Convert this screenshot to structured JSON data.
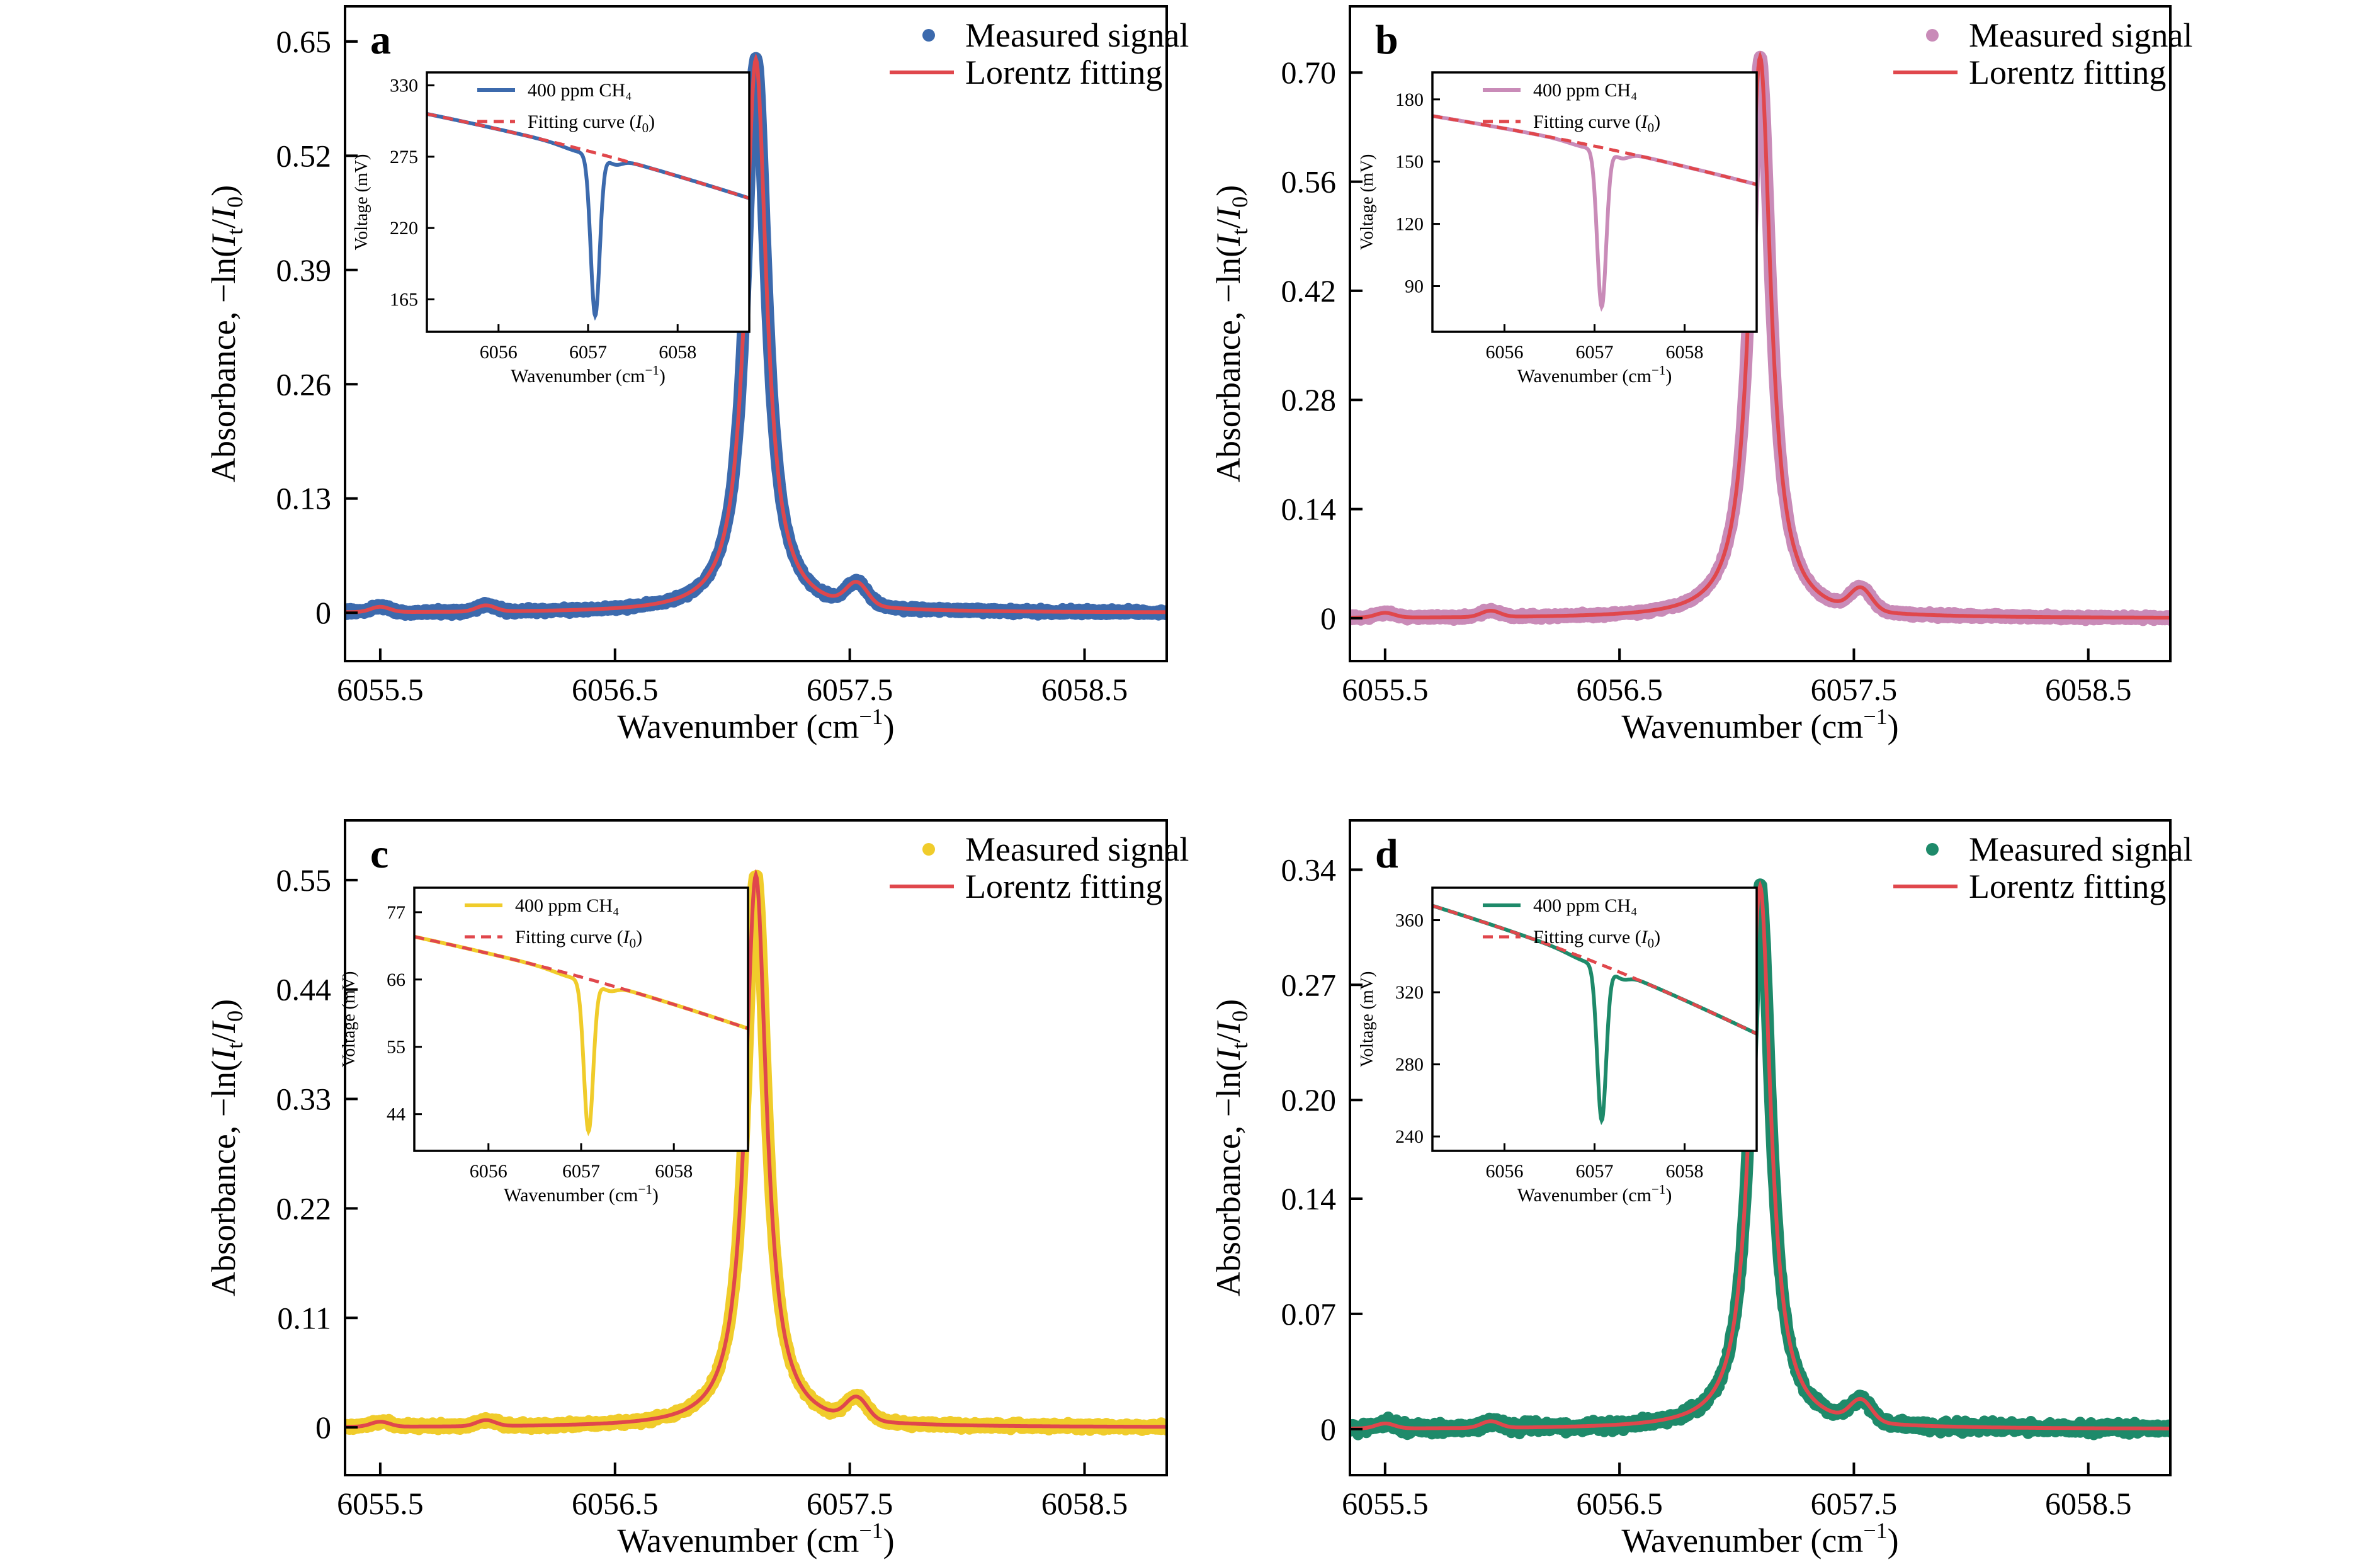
{
  "chart_data": [
    {
      "type": "line",
      "panel_label": "a",
      "xlabel": "Wavenumber (cm⁻¹)",
      "ylabel": "Absorbance, −ln(It/I0)",
      "xlim": [
        6055.35,
        6058.85
      ],
      "ylim": [
        -0.055,
        0.69
      ],
      "xticks": [
        6055.5,
        6056.5,
        6057.5,
        6058.5
      ],
      "xtick_labels": [
        "6055.5",
        "6056.5",
        "6057.5",
        "6058.5"
      ],
      "yticks": [
        0,
        0.13,
        0.26,
        0.39,
        0.52,
        0.65
      ],
      "ytick_labels": [
        "0",
        "0.13",
        "0.26",
        "0.39",
        "0.52",
        "0.65"
      ],
      "peak": {
        "x": 6057.1,
        "y": 0.63,
        "hwhm": 0.055
      },
      "baseline_bumps": [
        {
          "x": 6055.5,
          "y": 0.006
        },
        {
          "x": 6055.95,
          "y": 0.007
        },
        {
          "x": 6057.53,
          "y": 0.025
        }
      ],
      "legend": {
        "position": "top-right",
        "entries": [
          "Measured signal",
          "Lorentz fitting"
        ]
      },
      "series": [
        {
          "name": "Measured signal",
          "style": "markers",
          "color": "#3c6aad"
        },
        {
          "name": "Lorentz fitting",
          "style": "line",
          "color": "#e0474c"
        }
      ],
      "inset": {
        "xlabel": "Wavenumber (cm⁻¹)",
        "ylabel": "Voltage (mV)",
        "xlim": [
          6055.2,
          6058.8
        ],
        "ylim": [
          140,
          340
        ],
        "xticks": [
          6056,
          6057,
          6058
        ],
        "xtick_labels": [
          "6056",
          "6057",
          "6058"
        ],
        "yticks": [
          165,
          220,
          275,
          330
        ],
        "ytick_labels": [
          "165",
          "220",
          "275",
          "330"
        ],
        "baseline": {
          "start": 308,
          "end": 243
        },
        "dip": {
          "x": 6057.08,
          "min": 154
        },
        "legend_entries": [
          "400 ppm CH₄",
          "Fitting curve (I₀)"
        ],
        "series": [
          {
            "name": "400 ppm CH₄",
            "style": "line",
            "color": "#3c6aad"
          },
          {
            "name": "Fitting curve (I₀)",
            "style": "dashed",
            "color": "#e0474c"
          }
        ]
      }
    },
    {
      "type": "line",
      "panel_label": "b",
      "xlabel": "Wavenumber (cm⁻¹)",
      "ylabel": "Absorbance, −ln(It/I0)",
      "xlim": [
        6055.35,
        6058.85
      ],
      "ylim": [
        -0.055,
        0.785
      ],
      "xticks": [
        6055.5,
        6056.5,
        6057.5,
        6058.5
      ],
      "xtick_labels": [
        "6055.5",
        "6056.5",
        "6057.5",
        "6058.5"
      ],
      "yticks": [
        0,
        0.14,
        0.28,
        0.42,
        0.56,
        0.7
      ],
      "ytick_labels": [
        "0",
        "0.14",
        "0.28",
        "0.42",
        "0.56",
        "0.70"
      ],
      "peak": {
        "x": 6057.1,
        "y": 0.72,
        "hwhm": 0.055
      },
      "baseline_bumps": [
        {
          "x": 6055.5,
          "y": 0.006
        },
        {
          "x": 6055.95,
          "y": 0.008
        },
        {
          "x": 6057.53,
          "y": 0.028
        }
      ],
      "legend": {
        "position": "top-right",
        "entries": [
          "Measured signal",
          "Lorentz fitting"
        ]
      },
      "series": [
        {
          "name": "Measured signal",
          "style": "markers",
          "color": "#c98bb8"
        },
        {
          "name": "Lorentz fitting",
          "style": "line",
          "color": "#e0474c"
        }
      ],
      "inset": {
        "xlabel": "Wavenumber (cm⁻¹)",
        "ylabel": "Voltage (mV)",
        "xlim": [
          6055.2,
          6058.8
        ],
        "ylim": [
          68,
          193
        ],
        "xticks": [
          6056,
          6057,
          6058
        ],
        "xtick_labels": [
          "6056",
          "6057",
          "6058"
        ],
        "yticks": [
          90,
          120,
          150,
          180
        ],
        "ytick_labels": [
          "90",
          "120",
          "150",
          "180"
        ],
        "baseline": {
          "start": 172,
          "end": 139
        },
        "dip": {
          "x": 6057.08,
          "min": 81
        },
        "legend_entries": [
          "400 ppm CH₄",
          "Fitting curve (I₀)"
        ],
        "series": [
          {
            "name": "400 ppm CH₄",
            "style": "line",
            "color": "#c98bb8"
          },
          {
            "name": "Fitting curve (I₀)",
            "style": "dashed",
            "color": "#e0474c"
          }
        ]
      }
    },
    {
      "type": "line",
      "panel_label": "c",
      "xlabel": "Wavenumber (cm⁻¹)",
      "ylabel": "Absorbance, −ln(It/I0)",
      "xlim": [
        6055.35,
        6058.85
      ],
      "ylim": [
        -0.048,
        0.61
      ],
      "xticks": [
        6055.5,
        6056.5,
        6057.5,
        6058.5
      ],
      "xtick_labels": [
        "6055.5",
        "6056.5",
        "6057.5",
        "6058.5"
      ],
      "yticks": [
        0,
        0.11,
        0.22,
        0.33,
        0.44,
        0.55
      ],
      "ytick_labels": [
        "0",
        "0.11",
        "0.22",
        "0.33",
        "0.44",
        "0.55"
      ],
      "peak": {
        "x": 6057.1,
        "y": 0.555,
        "hwhm": 0.055
      },
      "baseline_bumps": [
        {
          "x": 6055.5,
          "y": 0.005
        },
        {
          "x": 6055.95,
          "y": 0.006
        },
        {
          "x": 6057.53,
          "y": 0.022
        }
      ],
      "legend": {
        "position": "top-right",
        "entries": [
          "Measured signal",
          "Lorentz fitting"
        ]
      },
      "series": [
        {
          "name": "Measured signal",
          "style": "markers",
          "color": "#f0cc2b"
        },
        {
          "name": "Lorentz fitting",
          "style": "line",
          "color": "#e0474c"
        }
      ],
      "inset": {
        "xlabel": "Wavenumber (cm⁻¹)",
        "ylabel": "Voltage (mV)",
        "xlim": [
          6055.2,
          6058.8
        ],
        "ylim": [
          38,
          81
        ],
        "xticks": [
          6056,
          6057,
          6058
        ],
        "xtick_labels": [
          "6056",
          "6057",
          "6058"
        ],
        "yticks": [
          44,
          55,
          66,
          77
        ],
        "ytick_labels": [
          "44",
          "55",
          "66",
          "77"
        ],
        "baseline": {
          "start": 73,
          "end": 58
        },
        "dip": {
          "x": 6057.08,
          "min": 41.5
        },
        "legend_entries": [
          "400 ppm CH₄",
          "Fitting curve (I₀)"
        ],
        "series": [
          {
            "name": "400 ppm CH₄",
            "style": "line",
            "color": "#f0cc2b"
          },
          {
            "name": "Fitting curve (I₀)",
            "style": "dashed",
            "color": "#e0474c"
          }
        ]
      }
    },
    {
      "type": "line",
      "panel_label": "d",
      "xlabel": "Wavenumber (cm⁻¹)",
      "ylabel": "Absorbance, −ln(It/I0)",
      "xlim": [
        6055.35,
        6058.85
      ],
      "ylim": [
        -0.028,
        0.37
      ],
      "xticks": [
        6055.5,
        6056.5,
        6057.5,
        6058.5
      ],
      "xtick_labels": [
        "6055.5",
        "6056.5",
        "6057.5",
        "6058.5"
      ],
      "yticks": [
        0,
        0.07,
        0.14,
        0.2,
        0.27,
        0.34
      ],
      "ytick_labels": [
        "0",
        "0.07",
        "0.14",
        "0.20",
        "0.27",
        "0.34"
      ],
      "peak": {
        "x": 6057.1,
        "y": 0.33,
        "hwhm": 0.055
      },
      "baseline_bumps": [
        {
          "x": 6055.5,
          "y": 0.003
        },
        {
          "x": 6055.95,
          "y": 0.004
        },
        {
          "x": 6057.53,
          "y": 0.013
        }
      ],
      "legend": {
        "position": "top-right",
        "entries": [
          "Measured signal",
          "Lorentz fitting"
        ]
      },
      "series": [
        {
          "name": "Measured signal",
          "style": "markers",
          "color": "#1e8a6a"
        },
        {
          "name": "Lorentz fitting",
          "style": "line",
          "color": "#e0474c"
        }
      ],
      "inset": {
        "xlabel": "Wavenumber (cm⁻¹)",
        "ylabel": "Voltage (mV)",
        "xlim": [
          6055.2,
          6058.8
        ],
        "ylim": [
          232,
          378
        ],
        "xticks": [
          6056,
          6057,
          6058
        ],
        "xtick_labels": [
          "6056",
          "6057",
          "6058"
        ],
        "yticks": [
          240,
          280,
          320,
          360
        ],
        "ytick_labels": [
          "240",
          "280",
          "320",
          "360"
        ],
        "baseline": {
          "start": 368,
          "end": 297
        },
        "dip": {
          "x": 6057.08,
          "min": 250
        },
        "legend_entries": [
          "400 ppm CH₄",
          "Fitting curve (I₀)"
        ],
        "series": [
          {
            "name": "400 ppm CH₄",
            "style": "line",
            "color": "#1e8a6a"
          },
          {
            "name": "Fitting curve (I₀)",
            "style": "dashed",
            "color": "#e0474c"
          }
        ]
      }
    }
  ]
}
